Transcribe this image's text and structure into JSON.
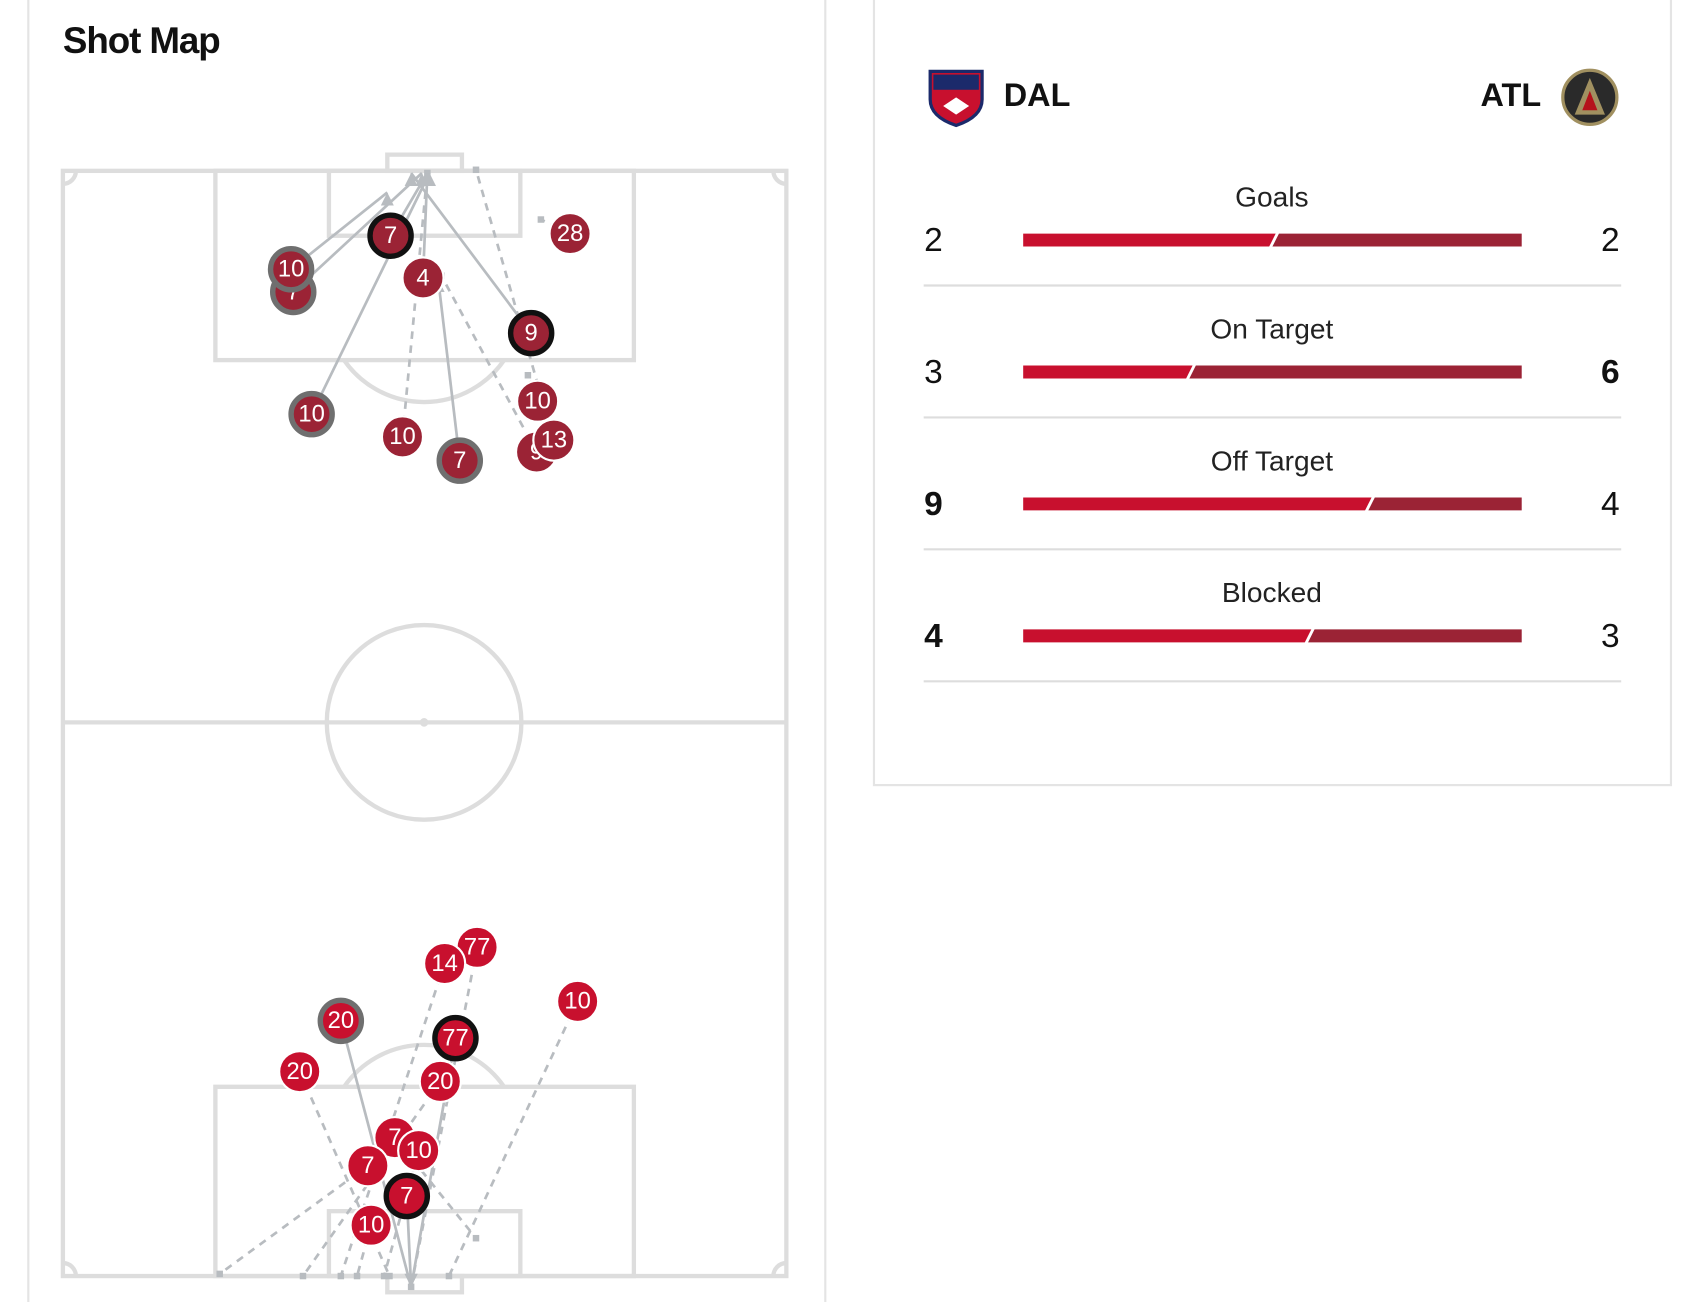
{
  "title": "Shot Map",
  "teams": {
    "home": "DAL",
    "away": "ATL"
  },
  "stats": [
    {
      "label": "Goals",
      "home": 2,
      "away": 2
    },
    {
      "label": "On Target",
      "home": 3,
      "away": 6
    },
    {
      "label": "Off Target",
      "home": 9,
      "away": 4
    },
    {
      "label": "Blocked",
      "home": 4,
      "away": 3
    }
  ],
  "shots": {
    "atl": [
      {
        "number": "7"
      },
      {
        "number": "7"
      },
      {
        "number": "10"
      },
      {
        "number": "4"
      },
      {
        "number": "28"
      },
      {
        "number": "9"
      },
      {
        "number": "10"
      },
      {
        "number": "10"
      },
      {
        "number": "7"
      },
      {
        "number": "10"
      },
      {
        "number": "9"
      },
      {
        "number": "13"
      }
    ],
    "dal": [
      {
        "number": "77"
      },
      {
        "number": "14"
      },
      {
        "number": "10"
      },
      {
        "number": "20"
      },
      {
        "number": "77"
      },
      {
        "number": "20"
      },
      {
        "number": "20"
      },
      {
        "number": "7"
      },
      {
        "number": "10"
      },
      {
        "number": "7"
      },
      {
        "number": "7"
      },
      {
        "number": "10"
      }
    ]
  }
}
